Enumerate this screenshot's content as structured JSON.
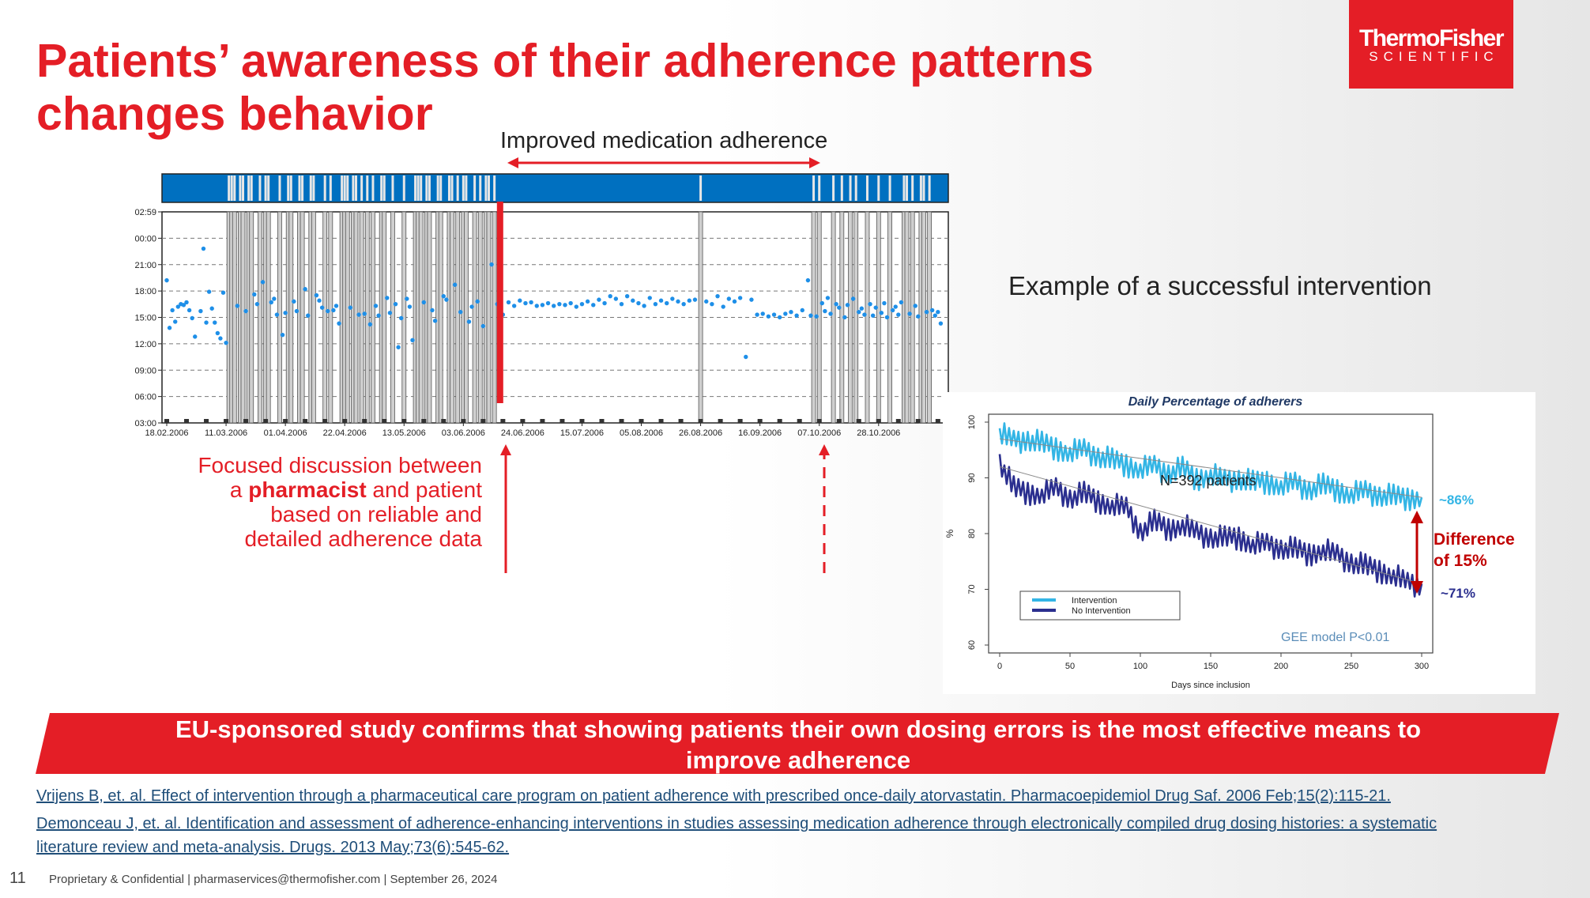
{
  "slide": {
    "title": "Patients’ awareness of their adherence patterns changes behavior",
    "logo_line1": "ThermoFisher",
    "logo_line2": "SCIENTIFIC",
    "improved_label": "Improved medication adherence",
    "example_label": "Example of a successful intervention",
    "focus_pre": "Focused discussion between a ",
    "focus_bold": "pharmacist",
    "focus_post": " and patient based on reliable and detailed adherence data",
    "banner": "EU-sponsored study confirms that showing patients their own dosing errors is the most effective means to improve adherence",
    "references": [
      "Vrijens B, et. al. Effect of intervention through a pharmaceutical care program on patient adherence with prescribed once-daily atorvastatin. Pharmacoepidemiol Drug Saf. 2006 Feb;15(2):115-21.",
      "Demonceau J, et. al. Identification and assessment of adherence-enhancing interventions in studies assessing medication adherence through electronically compiled drug dosing histories: a systematic",
      "literature review and meta-analysis. Drugs. 2013 May;73(6):545-62."
    ],
    "slide_number": "11",
    "footer": "Proprietary & Confidential |  pharmaservices@thermofisher.com | September 26, 2024",
    "colors": {
      "accent_red": "#e41e26",
      "blue": "#0070c0",
      "dot_blue": "#1e8fe8",
      "light_blue": "#33b5e5",
      "dark_blue": "#2b2f8f"
    }
  },
  "chart_data": [
    {
      "type": "scatter",
      "title": "",
      "x_tick_labels": [
        "18.02.2006",
        "11.03.2006",
        "01.04.2006",
        "22.04.2006",
        "13.05.2006",
        "03.06.2006",
        "24.06.2006",
        "15.07.2006",
        "05.08.2006",
        "26.08.2006",
        "16.09.2006",
        "07.10.2006",
        "28.10.2006"
      ],
      "y_tick_labels": [
        "02:59",
        "00:00",
        "21:00",
        "18:00",
        "15:00",
        "12:00",
        "09:00",
        "06:00",
        "03:00"
      ],
      "x_range_days": [
        0,
        275
      ],
      "y_range_hours": [
        3,
        26.98
      ],
      "grid": true,
      "intervention_day": 118,
      "second_intervention_day": 229,
      "missed_dose_days": [
        22,
        23,
        24,
        26,
        27,
        29,
        30,
        33,
        35,
        36,
        40,
        43,
        44,
        47,
        48,
        51,
        52,
        56,
        58,
        62,
        63,
        64,
        66,
        67,
        69,
        71,
        73,
        76,
        77,
        80,
        84,
        88,
        89,
        90,
        92,
        93,
        96,
        97,
        100,
        101,
        103,
        105,
        106,
        109,
        111,
        113,
        114,
        116,
        189,
        229,
        231,
        236,
        239,
        242,
        244,
        248,
        252,
        256,
        261,
        262,
        264,
        267,
        268,
        270
      ],
      "dose_times": [
        [
          0,
          19.2
        ],
        [
          1,
          13.8
        ],
        [
          2,
          15.8
        ],
        [
          3,
          14.5
        ],
        [
          4,
          16.2
        ],
        [
          5,
          16.5
        ],
        [
          6,
          16.4
        ],
        [
          7,
          16.7
        ],
        [
          8,
          15.8
        ],
        [
          9,
          14.9
        ],
        [
          10,
          12.8
        ],
        [
          12,
          15.7
        ],
        [
          13,
          22.8
        ],
        [
          14,
          14.4
        ],
        [
          15,
          17.9
        ],
        [
          16,
          16.0
        ],
        [
          17,
          14.4
        ],
        [
          18,
          13.2
        ],
        [
          19,
          12.6
        ],
        [
          20,
          17.8
        ],
        [
          21,
          12.1
        ],
        [
          25,
          16.3
        ],
        [
          28,
          15.7
        ],
        [
          31,
          17.6
        ],
        [
          32,
          16.5
        ],
        [
          34,
          19.0
        ],
        [
          37,
          16.7
        ],
        [
          38,
          17.1
        ],
        [
          39,
          15.3
        ],
        [
          41,
          13.0
        ],
        [
          42,
          15.5
        ],
        [
          45,
          16.8
        ],
        [
          46,
          15.7
        ],
        [
          49,
          18.2
        ],
        [
          50,
          15.2
        ],
        [
          53,
          17.5
        ],
        [
          54,
          16.9
        ],
        [
          55,
          16.1
        ],
        [
          57,
          15.7
        ],
        [
          59,
          15.8
        ],
        [
          60,
          16.3
        ],
        [
          61,
          14.3
        ],
        [
          65,
          16.1
        ],
        [
          68,
          15.3
        ],
        [
          70,
          15.4
        ],
        [
          72,
          14.2
        ],
        [
          74,
          16.3
        ],
        [
          75,
          15.2
        ],
        [
          78,
          17.2
        ],
        [
          79,
          15.5
        ],
        [
          81,
          16.5
        ],
        [
          82,
          11.6
        ],
        [
          83,
          14.9
        ],
        [
          85,
          17.1
        ],
        [
          86,
          16.2
        ],
        [
          87,
          12.4
        ],
        [
          91,
          16.7
        ],
        [
          94,
          15.8
        ],
        [
          95,
          14.6
        ],
        [
          98,
          17.4
        ],
        [
          99,
          17.0
        ],
        [
          102,
          18.7
        ],
        [
          104,
          15.6
        ],
        [
          107,
          14.5
        ],
        [
          108,
          16.2
        ],
        [
          110,
          16.8
        ],
        [
          112,
          14.0
        ],
        [
          115,
          21.0
        ],
        [
          117,
          16.5
        ],
        [
          119,
          15.3
        ],
        [
          121,
          16.7
        ],
        [
          123,
          16.3
        ],
        [
          125,
          16.9
        ],
        [
          127,
          16.6
        ],
        [
          129,
          16.7
        ],
        [
          131,
          16.3
        ],
        [
          133,
          16.4
        ],
        [
          135,
          16.6
        ],
        [
          137,
          16.3
        ],
        [
          139,
          16.5
        ],
        [
          141,
          16.4
        ],
        [
          143,
          16.6
        ],
        [
          145,
          16.2
        ],
        [
          147,
          16.5
        ],
        [
          149,
          16.8
        ],
        [
          151,
          16.4
        ],
        [
          153,
          17.0
        ],
        [
          155,
          16.6
        ],
        [
          157,
          17.4
        ],
        [
          159,
          17.1
        ],
        [
          161,
          16.5
        ],
        [
          163,
          17.4
        ],
        [
          165,
          16.9
        ],
        [
          167,
          16.6
        ],
        [
          169,
          16.3
        ],
        [
          171,
          17.2
        ],
        [
          173,
          16.5
        ],
        [
          175,
          16.9
        ],
        [
          177,
          16.6
        ],
        [
          179,
          17.1
        ],
        [
          181,
          16.8
        ],
        [
          183,
          16.5
        ],
        [
          185,
          16.9
        ],
        [
          187,
          17.0
        ],
        [
          191,
          16.8
        ],
        [
          193,
          16.5
        ],
        [
          195,
          17.4
        ],
        [
          197,
          16.2
        ],
        [
          199,
          17.1
        ],
        [
          201,
          16.8
        ],
        [
          203,
          17.2
        ],
        [
          205,
          10.5
        ],
        [
          207,
          17.0
        ],
        [
          209,
          15.3
        ],
        [
          211,
          15.4
        ],
        [
          213,
          15.1
        ],
        [
          215,
          15.3
        ],
        [
          217,
          15.0
        ],
        [
          219,
          15.4
        ],
        [
          221,
          15.6
        ],
        [
          223,
          15.2
        ],
        [
          225,
          15.8
        ],
        [
          227,
          19.2
        ],
        [
          228,
          15.2
        ],
        [
          230,
          15.1
        ],
        [
          232,
          16.6
        ],
        [
          233,
          15.7
        ],
        [
          234,
          17.2
        ],
        [
          235,
          15.4
        ],
        [
          237,
          16.5
        ],
        [
          238,
          16.1
        ],
        [
          240,
          15.0
        ],
        [
          241,
          16.4
        ],
        [
          243,
          17.1
        ],
        [
          245,
          15.6
        ],
        [
          246,
          16.0
        ],
        [
          247,
          15.3
        ],
        [
          249,
          16.5
        ],
        [
          250,
          15.2
        ],
        [
          251,
          16.1
        ],
        [
          253,
          15.5
        ],
        [
          254,
          16.6
        ],
        [
          255,
          15.0
        ],
        [
          257,
          15.8
        ],
        [
          258,
          16.2
        ],
        [
          259,
          15.3
        ],
        [
          260,
          16.7
        ],
        [
          263,
          15.4
        ],
        [
          265,
          16.3
        ],
        [
          266,
          15.1
        ],
        [
          269,
          15.6
        ],
        [
          271,
          15.8
        ],
        [
          272,
          15.2
        ],
        [
          273,
          15.6
        ],
        [
          274,
          14.3
        ]
      ],
      "arrow_label": "Improved medication adherence"
    },
    {
      "type": "line",
      "title": "Daily Percentage of adherers",
      "xlabel": "Days since inclusion",
      "ylabel": "%",
      "xlim": [
        0,
        300
      ],
      "ylim": [
        60,
        100
      ],
      "x_ticks": [
        0,
        50,
        100,
        150,
        200,
        250,
        300
      ],
      "y_ticks": [
        60,
        70,
        80,
        90,
        100
      ],
      "legend": "bottom-left",
      "annotation_n": "N=392 patients",
      "annotation_model": "GEE model   P<0.01",
      "end_label_intervention": "~86%",
      "end_label_no_intervention": "~71%",
      "difference_label": "Difference of 15%",
      "series": [
        {
          "name": "Intervention",
          "color": "#33b5e5",
          "x": [
            0,
            10,
            20,
            30,
            40,
            50,
            60,
            70,
            80,
            90,
            100,
            110,
            120,
            130,
            140,
            150,
            160,
            170,
            180,
            190,
            200,
            210,
            220,
            230,
            240,
            250,
            260,
            270,
            280,
            290,
            300
          ],
          "y": [
            98,
            96.5,
            97,
            96,
            95.5,
            94.5,
            95,
            94,
            93,
            92.5,
            91.5,
            92,
            91,
            91.5,
            90,
            90.5,
            89.5,
            90,
            89,
            89.5,
            88.5,
            89,
            88,
            88.5,
            88,
            87,
            87.5,
            87,
            86.5,
            86.5,
            86.5
          ]
        },
        {
          "name": "No Intervention",
          "color": "#2b2f8f",
          "x": [
            0,
            10,
            20,
            30,
            40,
            50,
            60,
            70,
            80,
            90,
            100,
            110,
            120,
            130,
            140,
            150,
            160,
            170,
            180,
            190,
            200,
            210,
            220,
            230,
            240,
            250,
            260,
            270,
            280,
            290,
            300
          ],
          "y": [
            93,
            88,
            87.5,
            87,
            88,
            86.5,
            87,
            86,
            85,
            84.5,
            80.5,
            82,
            81,
            81.5,
            80,
            79.5,
            79,
            79.5,
            78,
            78,
            77.5,
            77,
            76.5,
            77,
            76,
            75,
            74,
            73.5,
            72.5,
            71,
            71
          ]
        }
      ]
    }
  ]
}
